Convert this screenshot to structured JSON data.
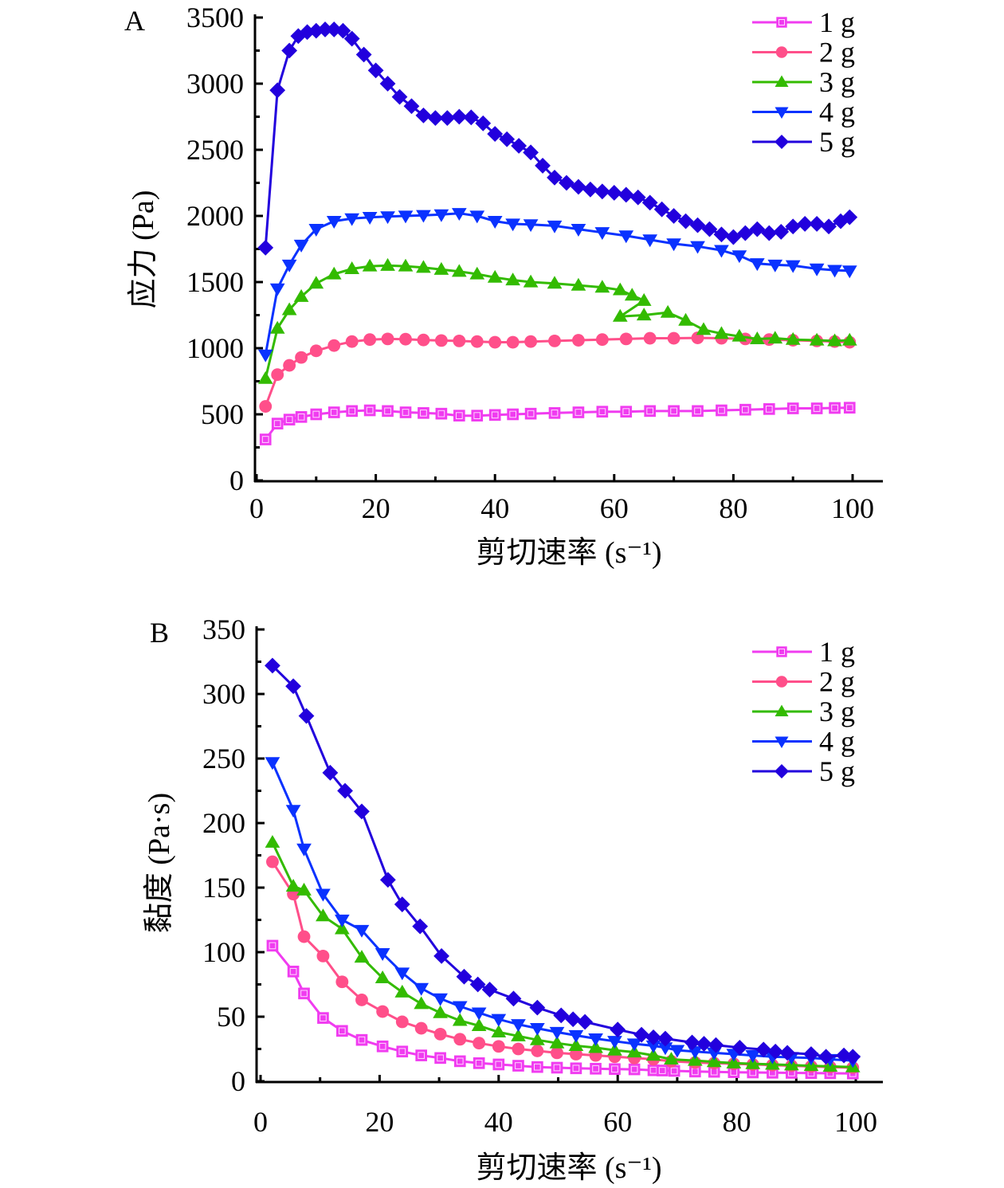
{
  "chart_data": [
    {
      "type": "line",
      "panel_label": "A",
      "title": "",
      "xlabel": "剪切速率 (s⁻¹)",
      "ylabel": "应力 (Pa)",
      "xlim": [
        0,
        100
      ],
      "ylim": [
        0,
        3500
      ],
      "xticks": [
        0,
        20,
        40,
        60,
        80,
        100
      ],
      "xtick_labels": [
        "0",
        "20",
        "40",
        "60",
        "80",
        "100"
      ],
      "yticks": [
        0,
        500,
        1000,
        1500,
        2000,
        2500,
        3000,
        3500
      ],
      "ytick_labels": [
        "0",
        "500",
        "1000",
        "1500",
        "2000",
        "2500",
        "3000",
        "3500"
      ],
      "grid": false,
      "legend_position": "top-right",
      "series": [
        {
          "name": "1 g",
          "color": "#f03cf0",
          "marker": "square-open",
          "x": [
            1.5,
            3.5,
            5.5,
            7.5,
            10,
            13,
            16,
            19,
            22,
            25,
            28,
            31,
            34,
            37,
            40,
            43,
            46,
            50,
            54,
            58,
            62,
            66,
            70,
            74,
            78,
            82,
            86,
            90,
            94,
            97,
            99.5
          ],
          "y": [
            310,
            430,
            460,
            480,
            500,
            515,
            525,
            530,
            525,
            515,
            510,
            505,
            490,
            490,
            495,
            500,
            505,
            510,
            515,
            520,
            520,
            525,
            525,
            525,
            530,
            535,
            540,
            545,
            545,
            548,
            550
          ]
        },
        {
          "name": "2 g",
          "color": "#ff4f8a",
          "marker": "circle",
          "x": [
            1.5,
            3.5,
            5.5,
            7.5,
            10,
            13,
            16,
            19,
            22,
            25,
            28,
            31,
            34,
            37,
            40,
            43,
            46,
            50,
            54,
            58,
            62,
            66,
            70,
            74,
            78,
            82,
            86,
            90,
            94,
            97,
            99.5
          ],
          "y": [
            560,
            800,
            870,
            930,
            980,
            1020,
            1050,
            1065,
            1070,
            1068,
            1062,
            1058,
            1055,
            1050,
            1045,
            1045,
            1050,
            1055,
            1060,
            1065,
            1070,
            1075,
            1075,
            1078,
            1075,
            1070,
            1065,
            1060,
            1055,
            1050,
            1045
          ]
        },
        {
          "name": "3 g",
          "color": "#33bb00",
          "marker": "triangle-up",
          "x": [
            1.5,
            3.5,
            5.5,
            7.5,
            10,
            13,
            16,
            19,
            22,
            25,
            28,
            31,
            34,
            37,
            40,
            43,
            46,
            50,
            54,
            58,
            61,
            63,
            65,
            61,
            65,
            69,
            72,
            75,
            78,
            81,
            84,
            87,
            90,
            94,
            97,
            99.5
          ],
          "y": [
            770,
            1150,
            1290,
            1390,
            1490,
            1560,
            1600,
            1620,
            1625,
            1620,
            1610,
            1595,
            1580,
            1560,
            1535,
            1515,
            1500,
            1490,
            1475,
            1460,
            1440,
            1400,
            1360,
            1240,
            1250,
            1270,
            1210,
            1140,
            1110,
            1090,
            1070,
            1075,
            1065,
            1060,
            1055,
            1060
          ]
        },
        {
          "name": "4 g",
          "color": "#0a32ff",
          "marker": "triangle-down",
          "x": [
            1.5,
            3.5,
            5.5,
            7.5,
            10,
            13,
            16,
            19,
            22,
            25,
            28,
            31,
            34,
            37,
            40,
            43,
            46,
            50,
            54,
            58,
            62,
            66,
            70,
            74,
            78,
            81,
            84,
            87,
            90,
            94,
            97,
            99.5
          ],
          "y": [
            950,
            1450,
            1630,
            1780,
            1900,
            1960,
            1980,
            1990,
            1995,
            2000,
            2005,
            2010,
            2020,
            2000,
            1960,
            1940,
            1935,
            1925,
            1900,
            1875,
            1850,
            1820,
            1790,
            1770,
            1740,
            1700,
            1640,
            1630,
            1625,
            1600,
            1590,
            1585
          ]
        },
        {
          "name": "5 g",
          "color": "#2200dd",
          "marker": "diamond",
          "x": [
            1.5,
            3.5,
            5.5,
            7,
            8.5,
            10,
            11.5,
            13,
            14.5,
            16,
            18,
            20,
            22,
            24,
            26,
            28,
            30,
            32,
            34,
            36,
            38,
            40,
            42,
            44,
            46,
            48,
            50,
            52,
            54,
            56,
            58,
            60,
            62,
            64,
            66,
            68,
            70,
            72,
            74,
            76,
            78,
            80,
            82,
            84,
            86,
            88,
            90,
            92,
            94,
            96,
            98,
            99.5
          ],
          "y": [
            1760,
            2950,
            3250,
            3360,
            3390,
            3400,
            3410,
            3410,
            3400,
            3340,
            3220,
            3100,
            3000,
            2900,
            2830,
            2760,
            2740,
            2740,
            2750,
            2745,
            2700,
            2620,
            2580,
            2530,
            2480,
            2380,
            2290,
            2250,
            2220,
            2200,
            2185,
            2175,
            2160,
            2140,
            2100,
            2050,
            2000,
            1960,
            1930,
            1900,
            1860,
            1840,
            1870,
            1900,
            1870,
            1880,
            1920,
            1940,
            1940,
            1920,
            1960,
            1990
          ]
        }
      ]
    },
    {
      "type": "line",
      "panel_label": "B",
      "title": "",
      "xlabel": "剪切速率 (s⁻¹)",
      "ylabel": "黏度 (Pa·s)",
      "xlim": [
        0,
        100
      ],
      "ylim": [
        0,
        350
      ],
      "xticks": [
        0,
        20,
        40,
        60,
        80,
        100
      ],
      "xtick_labels": [
        "0",
        "20",
        "40",
        "60",
        "80",
        "100"
      ],
      "yticks": [
        0,
        50,
        100,
        150,
        200,
        250,
        300,
        350
      ],
      "ytick_labels": [
        "0",
        "50",
        "100",
        "150",
        "200",
        "250",
        "300",
        "350"
      ],
      "grid": false,
      "legend_position": "top-right",
      "series": [
        {
          "name": "1 g",
          "color": "#f03cf0",
          "marker": "square-open",
          "x": [
            2,
            5.5,
            7.3,
            10.5,
            13.7,
            17,
            20.5,
            23.8,
            27,
            30.2,
            33.5,
            36.7,
            40,
            43.3,
            46.5,
            49.8,
            53,
            56.3,
            59.5,
            62.8,
            66,
            67.5,
            69.5,
            73,
            76.2,
            79.5,
            82.7,
            86,
            89.2,
            92.5,
            95.7,
            99.5
          ],
          "y": [
            105,
            85,
            68,
            49,
            39,
            32,
            27,
            23,
            20,
            18,
            15.5,
            14,
            13,
            12,
            11,
            10.5,
            10,
            9.7,
            9.4,
            9.2,
            8.5,
            8.3,
            8,
            7.5,
            7.3,
            7,
            6.8,
            6.6,
            6.5,
            6.3,
            6.2,
            6
          ]
        },
        {
          "name": "2 g",
          "color": "#ff4f8a",
          "marker": "circle",
          "x": [
            2,
            5.5,
            7.3,
            10.5,
            13.7,
            17,
            20.5,
            23.8,
            27,
            30.2,
            33.5,
            36.7,
            40,
            43.3,
            46.5,
            49.8,
            53,
            56.3,
            59.5,
            62.8,
            66,
            69,
            73,
            76.2,
            79.5,
            82.7,
            86,
            89.2,
            92.5,
            95.7,
            99.5
          ],
          "y": [
            170,
            145,
            112,
            97,
            77,
            63,
            54,
            46,
            41,
            36.5,
            32.5,
            29.5,
            27,
            25,
            23.5,
            22,
            21,
            20,
            19,
            18,
            17,
            15.5,
            14.5,
            14,
            13.5,
            13,
            12.5,
            12,
            11.5,
            11,
            10.5
          ]
        },
        {
          "name": "3 g",
          "color": "#33bb00",
          "marker": "triangle-up",
          "x": [
            2,
            5.5,
            7.3,
            10.5,
            13.7,
            17,
            20.5,
            23.8,
            27,
            30.2,
            33.5,
            36.7,
            40,
            43.3,
            46.5,
            49.8,
            53,
            56.3,
            59.5,
            62.8,
            66,
            69,
            73,
            76.2,
            79.5,
            82.7,
            86,
            89.2,
            92.5,
            95.7,
            99.5
          ],
          "y": [
            185,
            151,
            148,
            128,
            118,
            96,
            80,
            69,
            60,
            53,
            47,
            43,
            38,
            35,
            32,
            29.5,
            27.5,
            26,
            24,
            22.5,
            20,
            17,
            16,
            15,
            14,
            13.5,
            13,
            12.5,
            12,
            11.5,
            11
          ]
        },
        {
          "name": "4 g",
          "color": "#0a32ff",
          "marker": "triangle-down",
          "x": [
            2,
            5.5,
            7.3,
            10.5,
            13.7,
            17,
            20.5,
            23.8,
            27,
            30.2,
            33.5,
            36.7,
            40,
            43.3,
            46.5,
            49.8,
            53,
            56.3,
            59.5,
            62.8,
            66,
            68,
            70,
            73,
            76.2,
            79.5,
            82.7,
            86,
            89.2,
            92.5,
            95.7,
            99.5
          ],
          "y": [
            247,
            210,
            180,
            145,
            125,
            117,
            99,
            84,
            72,
            64,
            58,
            53,
            48,
            44,
            41,
            38,
            35.5,
            33,
            31,
            29,
            27.5,
            26,
            24,
            23,
            22,
            21,
            20,
            19,
            18.5,
            18,
            17,
            16
          ]
        },
        {
          "name": "5 g",
          "color": "#2200dd",
          "marker": "diamond",
          "x": [
            2,
            5.5,
            7.7,
            11.7,
            14.2,
            17,
            21.4,
            23.8,
            26.8,
            30.4,
            34.2,
            36.5,
            38.5,
            42.5,
            46.5,
            50.5,
            52.5,
            54.5,
            60,
            64,
            66,
            68,
            72.5,
            74.5,
            76.5,
            80.5,
            84.5,
            86.5,
            88.5,
            92.5,
            95,
            98,
            99.5
          ],
          "y": [
            322,
            306,
            283,
            239,
            225,
            209,
            156,
            137,
            120,
            97,
            81,
            75,
            71,
            64,
            57,
            51,
            48,
            46,
            40,
            36,
            34,
            33,
            30,
            29,
            28,
            26,
            24.5,
            23,
            22,
            21,
            19,
            20,
            19
          ]
        }
      ]
    }
  ]
}
